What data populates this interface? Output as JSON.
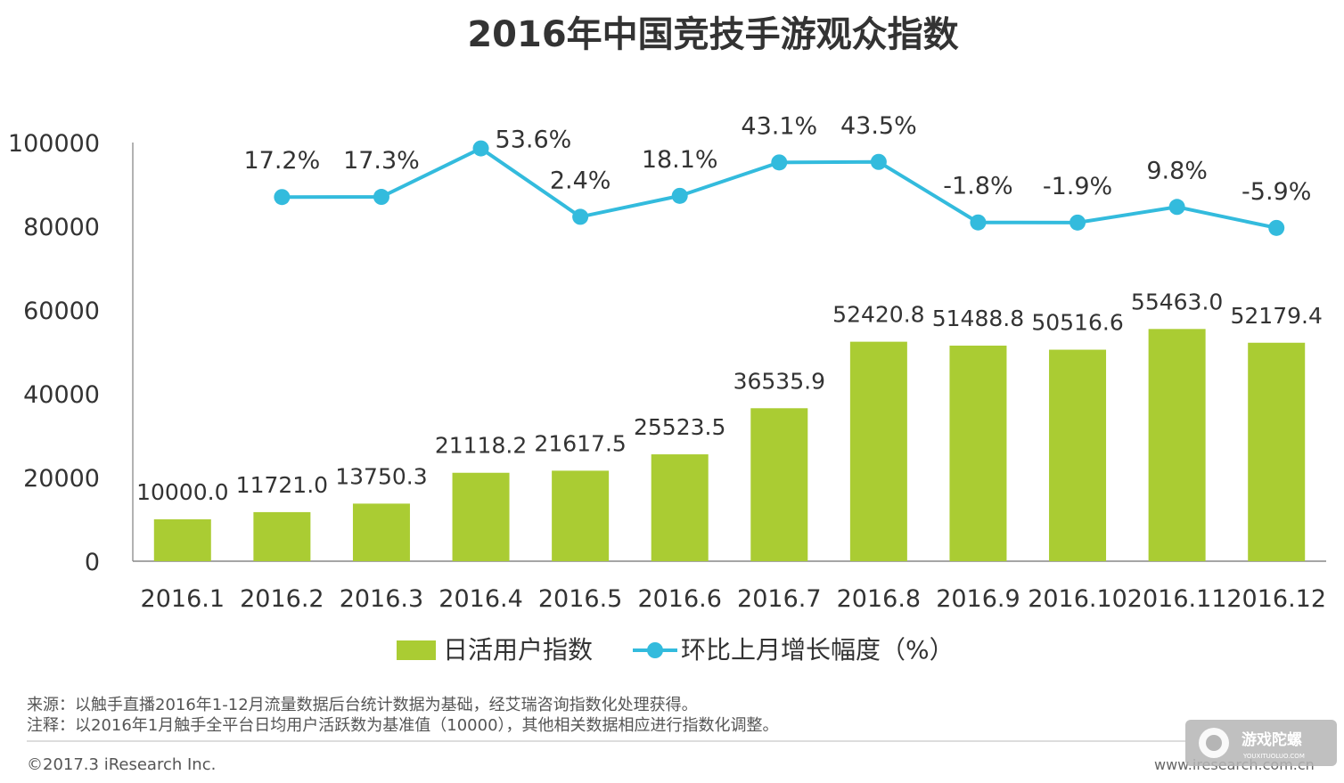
{
  "chart_data": {
    "type": "bar",
    "title": "2016年中国竞技手游观众指数",
    "categories": [
      "2016.1",
      "2016.2",
      "2016.3",
      "2016.4",
      "2016.5",
      "2016.6",
      "2016.7",
      "2016.8",
      "2016.9",
      "2016.10",
      "2016.11",
      "2016.12"
    ],
    "series": [
      {
        "name": "日活用户指数",
        "type": "bar",
        "color": "#aacc33",
        "values": [
          10000.0,
          11721.0,
          13750.3,
          21118.2,
          21617.5,
          25523.5,
          36535.9,
          52420.8,
          51488.8,
          50516.6,
          55463.0,
          52179.4
        ],
        "labels": [
          "10000.0",
          "11721.0",
          "13750.3",
          "21118.2",
          "21617.5",
          "25523.5",
          "36535.9",
          "52420.8",
          "51488.8",
          "50516.6",
          "55463.0",
          "52179.4"
        ]
      },
      {
        "name": "环比上月增长幅度（%）",
        "type": "line",
        "color": "#33bbdd",
        "values": [
          null,
          17.2,
          17.3,
          53.6,
          2.4,
          18.1,
          43.1,
          43.5,
          -1.8,
          -1.9,
          9.8,
          -5.9
        ],
        "labels": [
          "",
          "17.2%",
          "17.3%",
          "53.6%",
          "2.4%",
          "18.1%",
          "43.1%",
          "43.5%",
          "-1.8%",
          "-1.9%",
          "9.8%",
          "-5.9%"
        ]
      }
    ],
    "ylim": [
      0,
      100000
    ],
    "yticks": [
      "0",
      "20000",
      "40000",
      "60000",
      "80000",
      "100000"
    ],
    "grid": false,
    "legend_position": "bottom"
  },
  "legend": {
    "bar_label": "日活用户指数",
    "line_label": "环比上月增长幅度（%）"
  },
  "footnotes": {
    "source": "来源：以触手直播2016年1-12月流量数据后台统计数据为基础，经艾瑞咨询指数化处理获得。",
    "note": "注释：以2016年1月触手全平台日均用户活跃数为基准值（10000），其他相关数据相应进行指数化调整。"
  },
  "footer": {
    "copyright": "©2017.3 iResearch Inc.",
    "url": "www.iresearch.com.cn"
  },
  "watermark": {
    "text": "游戏陀螺",
    "subtext": "YOUXITUOLUO.COM"
  }
}
